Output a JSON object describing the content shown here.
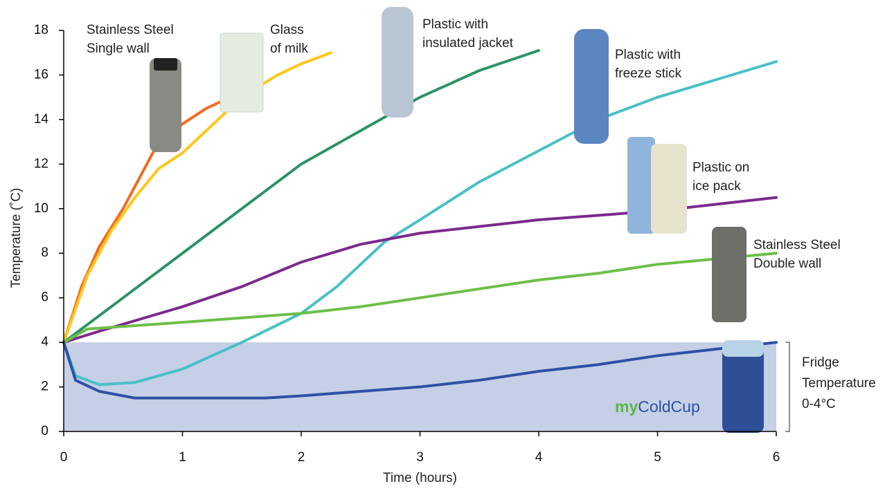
{
  "chart_data": {
    "type": "line",
    "xlabel": "Time (hours)",
    "ylabel": "Temperature (˚C)",
    "xlim": [
      0,
      6
    ],
    "xticks": [
      0,
      1,
      2,
      3,
      4,
      5,
      6
    ],
    "ylim": [
      0,
      18
    ],
    "yticks": [
      0,
      2,
      4,
      6,
      8,
      10,
      12,
      14,
      16,
      18
    ],
    "band": {
      "range": [
        0,
        4
      ],
      "color": "#c5d0e6",
      "label": [
        "Fridge",
        "Temperature",
        "0-4°C"
      ]
    },
    "series": [
      {
        "label": [
          "Stainless Steel",
          "Single wall"
        ],
        "color": "#f26a22",
        "x": [
          0,
          0.15,
          0.3,
          0.5,
          0.7,
          0.8,
          1.0,
          1.2,
          1.4
        ],
        "values": [
          4,
          6.5,
          8.3,
          10,
          12,
          13,
          13.8,
          14.5,
          15
        ]
      },
      {
        "label": [
          "Glass",
          "of milk"
        ],
        "color": "#ffc61a",
        "x": [
          0,
          0.2,
          0.4,
          0.6,
          0.8,
          1.0,
          1.3,
          1.5,
          1.8,
          2.0,
          2.25
        ],
        "values": [
          4,
          7,
          9,
          10.5,
          11.8,
          12.5,
          14,
          15,
          16,
          16.5,
          17
        ]
      },
      {
        "label": [
          "Plastic with",
          "insulated jacket"
        ],
        "color": "#2b9463",
        "x": [
          0,
          0.5,
          1,
          1.5,
          2,
          2.5,
          3,
          3.5,
          4
        ],
        "values": [
          4,
          6,
          8,
          10,
          12,
          13.5,
          15,
          16.2,
          17.1
        ]
      },
      {
        "label": [
          "Plastic with",
          "freeze stick"
        ],
        "color": "#48c0c6",
        "x": [
          0,
          0.1,
          0.3,
          0.6,
          1,
          1.5,
          2,
          2.3,
          2.7,
          3,
          3.5,
          4,
          4.5,
          5,
          5.5,
          6
        ],
        "values": [
          4,
          2.5,
          2.1,
          2.2,
          2.8,
          4,
          5.3,
          6.5,
          8.5,
          9.5,
          11.2,
          12.6,
          14,
          15,
          15.8,
          16.6
        ]
      },
      {
        "label": [
          "Plastic on",
          "ice pack"
        ],
        "color": "#7b2a8c",
        "x": [
          0,
          0.3,
          1,
          1.5,
          2,
          2.5,
          3,
          4,
          5,
          6
        ],
        "values": [
          4,
          4.5,
          5.6,
          6.5,
          7.6,
          8.4,
          8.9,
          9.5,
          9.9,
          10.5
        ]
      },
      {
        "label": [
          "Stainless Steel",
          "Double wall"
        ],
        "color": "#6cbf48",
        "x": [
          0,
          0.2,
          1,
          2,
          2.5,
          3,
          4,
          4.5,
          5,
          6
        ],
        "values": [
          4,
          4.6,
          4.9,
          5.3,
          5.6,
          6,
          6.8,
          7.1,
          7.5,
          8
        ]
      },
      {
        "label": [
          "my",
          "ColdCup"
        ],
        "label_style": "inline",
        "label_colors": [
          "#5bb642",
          "#2f50a5"
        ],
        "color": "#2f50a5",
        "x": [
          0,
          0.1,
          0.3,
          0.6,
          1,
          1.7,
          2,
          2.5,
          3,
          3.5,
          4,
          4.5,
          5,
          5.5,
          6
        ],
        "values": [
          4,
          2.3,
          1.8,
          1.5,
          1.5,
          1.5,
          1.6,
          1.8,
          2,
          2.3,
          2.7,
          3,
          3.4,
          3.7,
          4
        ]
      }
    ]
  }
}
